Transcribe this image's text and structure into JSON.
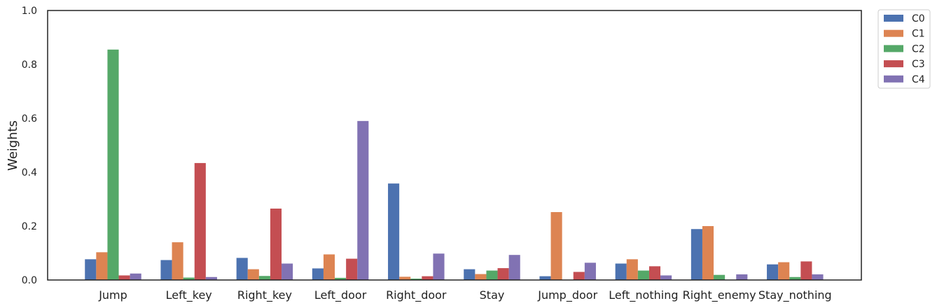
{
  "chart_data": {
    "type": "bar",
    "title": "",
    "xlabel": "",
    "ylabel": "Weights",
    "ylim": [
      0,
      1.0
    ],
    "yticks": [
      "0.0",
      "0.2",
      "0.4",
      "0.6",
      "0.8",
      "1.0"
    ],
    "grid": false,
    "legend_position": "outside-top-right",
    "categories": [
      "Jump",
      "Left_key",
      "Right_key",
      "Left_door",
      "Right_door",
      "Stay",
      "Jump_door",
      "Left_nothing",
      "Right_enemy",
      "Stay_nothing"
    ],
    "series": [
      {
        "name": "C0",
        "color": "#4c72b0",
        "values": [
          0.077,
          0.074,
          0.082,
          0.043,
          0.358,
          0.04,
          0.014,
          0.061,
          0.189,
          0.058
        ]
      },
      {
        "name": "C1",
        "color": "#dd8452",
        "values": [
          0.103,
          0.14,
          0.04,
          0.095,
          0.012,
          0.022,
          0.252,
          0.077,
          0.2,
          0.066
        ]
      },
      {
        "name": "C2",
        "color": "#55a868",
        "values": [
          0.855,
          0.009,
          0.015,
          0.008,
          0.005,
          0.035,
          0.0,
          0.035,
          0.019,
          0.011
        ]
      },
      {
        "name": "C3",
        "color": "#c44e52",
        "values": [
          0.017,
          0.434,
          0.265,
          0.079,
          0.014,
          0.044,
          0.03,
          0.051,
          0.0,
          0.069
        ]
      },
      {
        "name": "C4",
        "color": "#8172b3",
        "values": [
          0.024,
          0.011,
          0.061,
          0.59,
          0.098,
          0.093,
          0.064,
          0.017,
          0.021,
          0.021
        ]
      }
    ]
  }
}
